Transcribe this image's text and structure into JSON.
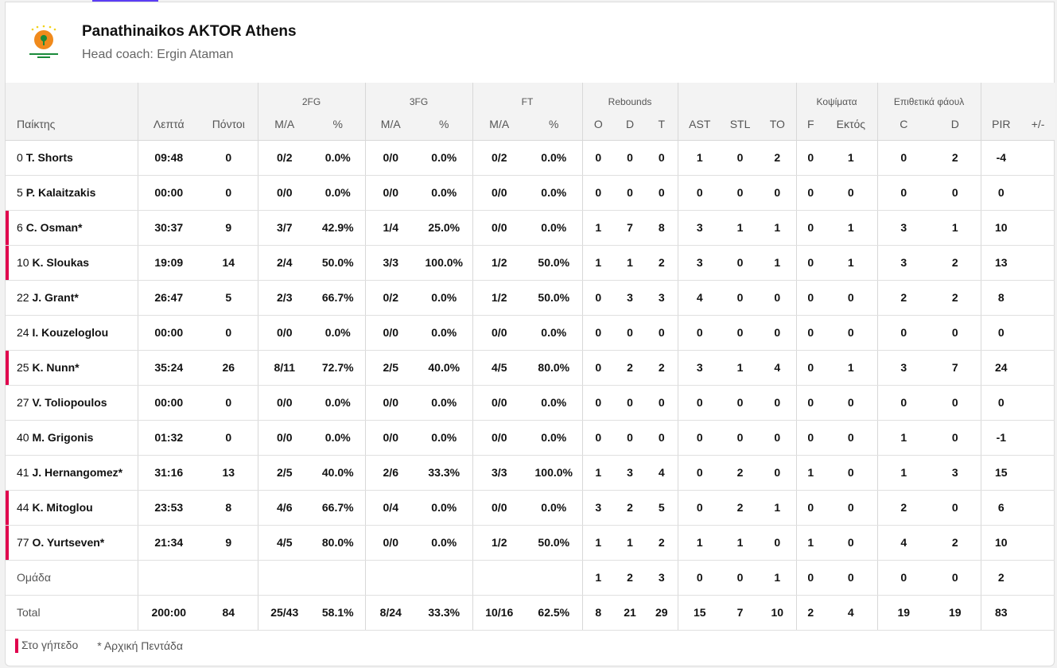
{
  "team": {
    "name": "Panathinaikos AKTOR Athens",
    "coach": "Head coach: Ergin Ataman",
    "logo_text": "PANATHINAIKOS BC AKTOR"
  },
  "colors": {
    "oncourt": "#e0004d",
    "accent": "#5b3df5"
  },
  "header": {
    "groups": [
      "",
      "",
      "",
      "2FG",
      "3FG",
      "FT",
      "Rebounds",
      "",
      "Κοψίματα",
      "Επιθετικά φάουλ",
      ""
    ],
    "columns": [
      "Παίκτης",
      "Λεπτά",
      "Πόντοι",
      "M/A",
      "%",
      "M/A",
      "%",
      "M/A",
      "%",
      "O",
      "D",
      "T",
      "AST",
      "STL",
      "TO",
      "F",
      "Εκτός",
      "C",
      "D",
      "PIR",
      "+/-"
    ]
  },
  "players": [
    {
      "num": "0",
      "name": "T. Shorts",
      "starter": false,
      "oncourt": false,
      "stats": [
        "09:48",
        "0",
        "0/2",
        "0.0%",
        "0/0",
        "0.0%",
        "0/2",
        "0.0%",
        "0",
        "0",
        "0",
        "1",
        "0",
        "2",
        "0",
        "1",
        "0",
        "2",
        "-4",
        ""
      ]
    },
    {
      "num": "5",
      "name": "P. Kalaitzakis",
      "starter": false,
      "oncourt": false,
      "stats": [
        "00:00",
        "0",
        "0/0",
        "0.0%",
        "0/0",
        "0.0%",
        "0/0",
        "0.0%",
        "0",
        "0",
        "0",
        "0",
        "0",
        "0",
        "0",
        "0",
        "0",
        "0",
        "0",
        ""
      ]
    },
    {
      "num": "6",
      "name": "C. Osman",
      "starter": true,
      "oncourt": true,
      "stats": [
        "30:37",
        "9",
        "3/7",
        "42.9%",
        "1/4",
        "25.0%",
        "0/0",
        "0.0%",
        "1",
        "7",
        "8",
        "3",
        "1",
        "1",
        "0",
        "1",
        "3",
        "1",
        "10",
        ""
      ]
    },
    {
      "num": "10",
      "name": "K. Sloukas",
      "starter": false,
      "oncourt": true,
      "stats": [
        "19:09",
        "14",
        "2/4",
        "50.0%",
        "3/3",
        "100.0%",
        "1/2",
        "50.0%",
        "1",
        "1",
        "2",
        "3",
        "0",
        "1",
        "0",
        "1",
        "3",
        "2",
        "13",
        ""
      ]
    },
    {
      "num": "22",
      "name": "J. Grant",
      "starter": true,
      "oncourt": false,
      "stats": [
        "26:47",
        "5",
        "2/3",
        "66.7%",
        "0/2",
        "0.0%",
        "1/2",
        "50.0%",
        "0",
        "3",
        "3",
        "4",
        "0",
        "0",
        "0",
        "0",
        "2",
        "2",
        "8",
        ""
      ]
    },
    {
      "num": "24",
      "name": "I. Kouzeloglou",
      "starter": false,
      "oncourt": false,
      "stats": [
        "00:00",
        "0",
        "0/0",
        "0.0%",
        "0/0",
        "0.0%",
        "0/0",
        "0.0%",
        "0",
        "0",
        "0",
        "0",
        "0",
        "0",
        "0",
        "0",
        "0",
        "0",
        "0",
        ""
      ]
    },
    {
      "num": "25",
      "name": "K. Nunn",
      "starter": true,
      "oncourt": true,
      "stats": [
        "35:24",
        "26",
        "8/11",
        "72.7%",
        "2/5",
        "40.0%",
        "4/5",
        "80.0%",
        "0",
        "2",
        "2",
        "3",
        "1",
        "4",
        "0",
        "1",
        "3",
        "7",
        "24",
        ""
      ]
    },
    {
      "num": "27",
      "name": "V. Toliopoulos",
      "starter": false,
      "oncourt": false,
      "stats": [
        "00:00",
        "0",
        "0/0",
        "0.0%",
        "0/0",
        "0.0%",
        "0/0",
        "0.0%",
        "0",
        "0",
        "0",
        "0",
        "0",
        "0",
        "0",
        "0",
        "0",
        "0",
        "0",
        ""
      ]
    },
    {
      "num": "40",
      "name": "M. Grigonis",
      "starter": false,
      "oncourt": false,
      "stats": [
        "01:32",
        "0",
        "0/0",
        "0.0%",
        "0/0",
        "0.0%",
        "0/0",
        "0.0%",
        "0",
        "0",
        "0",
        "0",
        "0",
        "0",
        "0",
        "0",
        "1",
        "0",
        "-1",
        ""
      ]
    },
    {
      "num": "41",
      "name": "J. Hernangomez",
      "starter": true,
      "oncourt": false,
      "stats": [
        "31:16",
        "13",
        "2/5",
        "40.0%",
        "2/6",
        "33.3%",
        "3/3",
        "100.0%",
        "1",
        "3",
        "4",
        "0",
        "2",
        "0",
        "1",
        "0",
        "1",
        "3",
        "15",
        ""
      ]
    },
    {
      "num": "44",
      "name": "K. Mitoglou",
      "starter": false,
      "oncourt": true,
      "stats": [
        "23:53",
        "8",
        "4/6",
        "66.7%",
        "0/4",
        "0.0%",
        "0/0",
        "0.0%",
        "3",
        "2",
        "5",
        "0",
        "2",
        "1",
        "0",
        "0",
        "2",
        "0",
        "6",
        ""
      ]
    },
    {
      "num": "77",
      "name": "O. Yurtseven",
      "starter": true,
      "oncourt": true,
      "stats": [
        "21:34",
        "9",
        "4/5",
        "80.0%",
        "0/0",
        "0.0%",
        "1/2",
        "50.0%",
        "1",
        "1",
        "2",
        "1",
        "1",
        "0",
        "1",
        "0",
        "4",
        "2",
        "10",
        ""
      ]
    }
  ],
  "team_row": {
    "label": "Ομάδα",
    "stats": [
      "",
      "",
      "",
      "",
      "",
      "",
      "",
      "",
      "1",
      "2",
      "3",
      "0",
      "0",
      "1",
      "0",
      "0",
      "0",
      "0",
      "2",
      ""
    ]
  },
  "total_row": {
    "label": "Total",
    "stats": [
      "200:00",
      "84",
      "25/43",
      "58.1%",
      "8/24",
      "33.3%",
      "10/16",
      "62.5%",
      "8",
      "21",
      "29",
      "15",
      "7",
      "10",
      "2",
      "4",
      "19",
      "19",
      "83",
      ""
    ]
  },
  "legend": {
    "oncourt": "Στο γήπεδο",
    "starter": "* Αρχική Πεντάδα"
  }
}
